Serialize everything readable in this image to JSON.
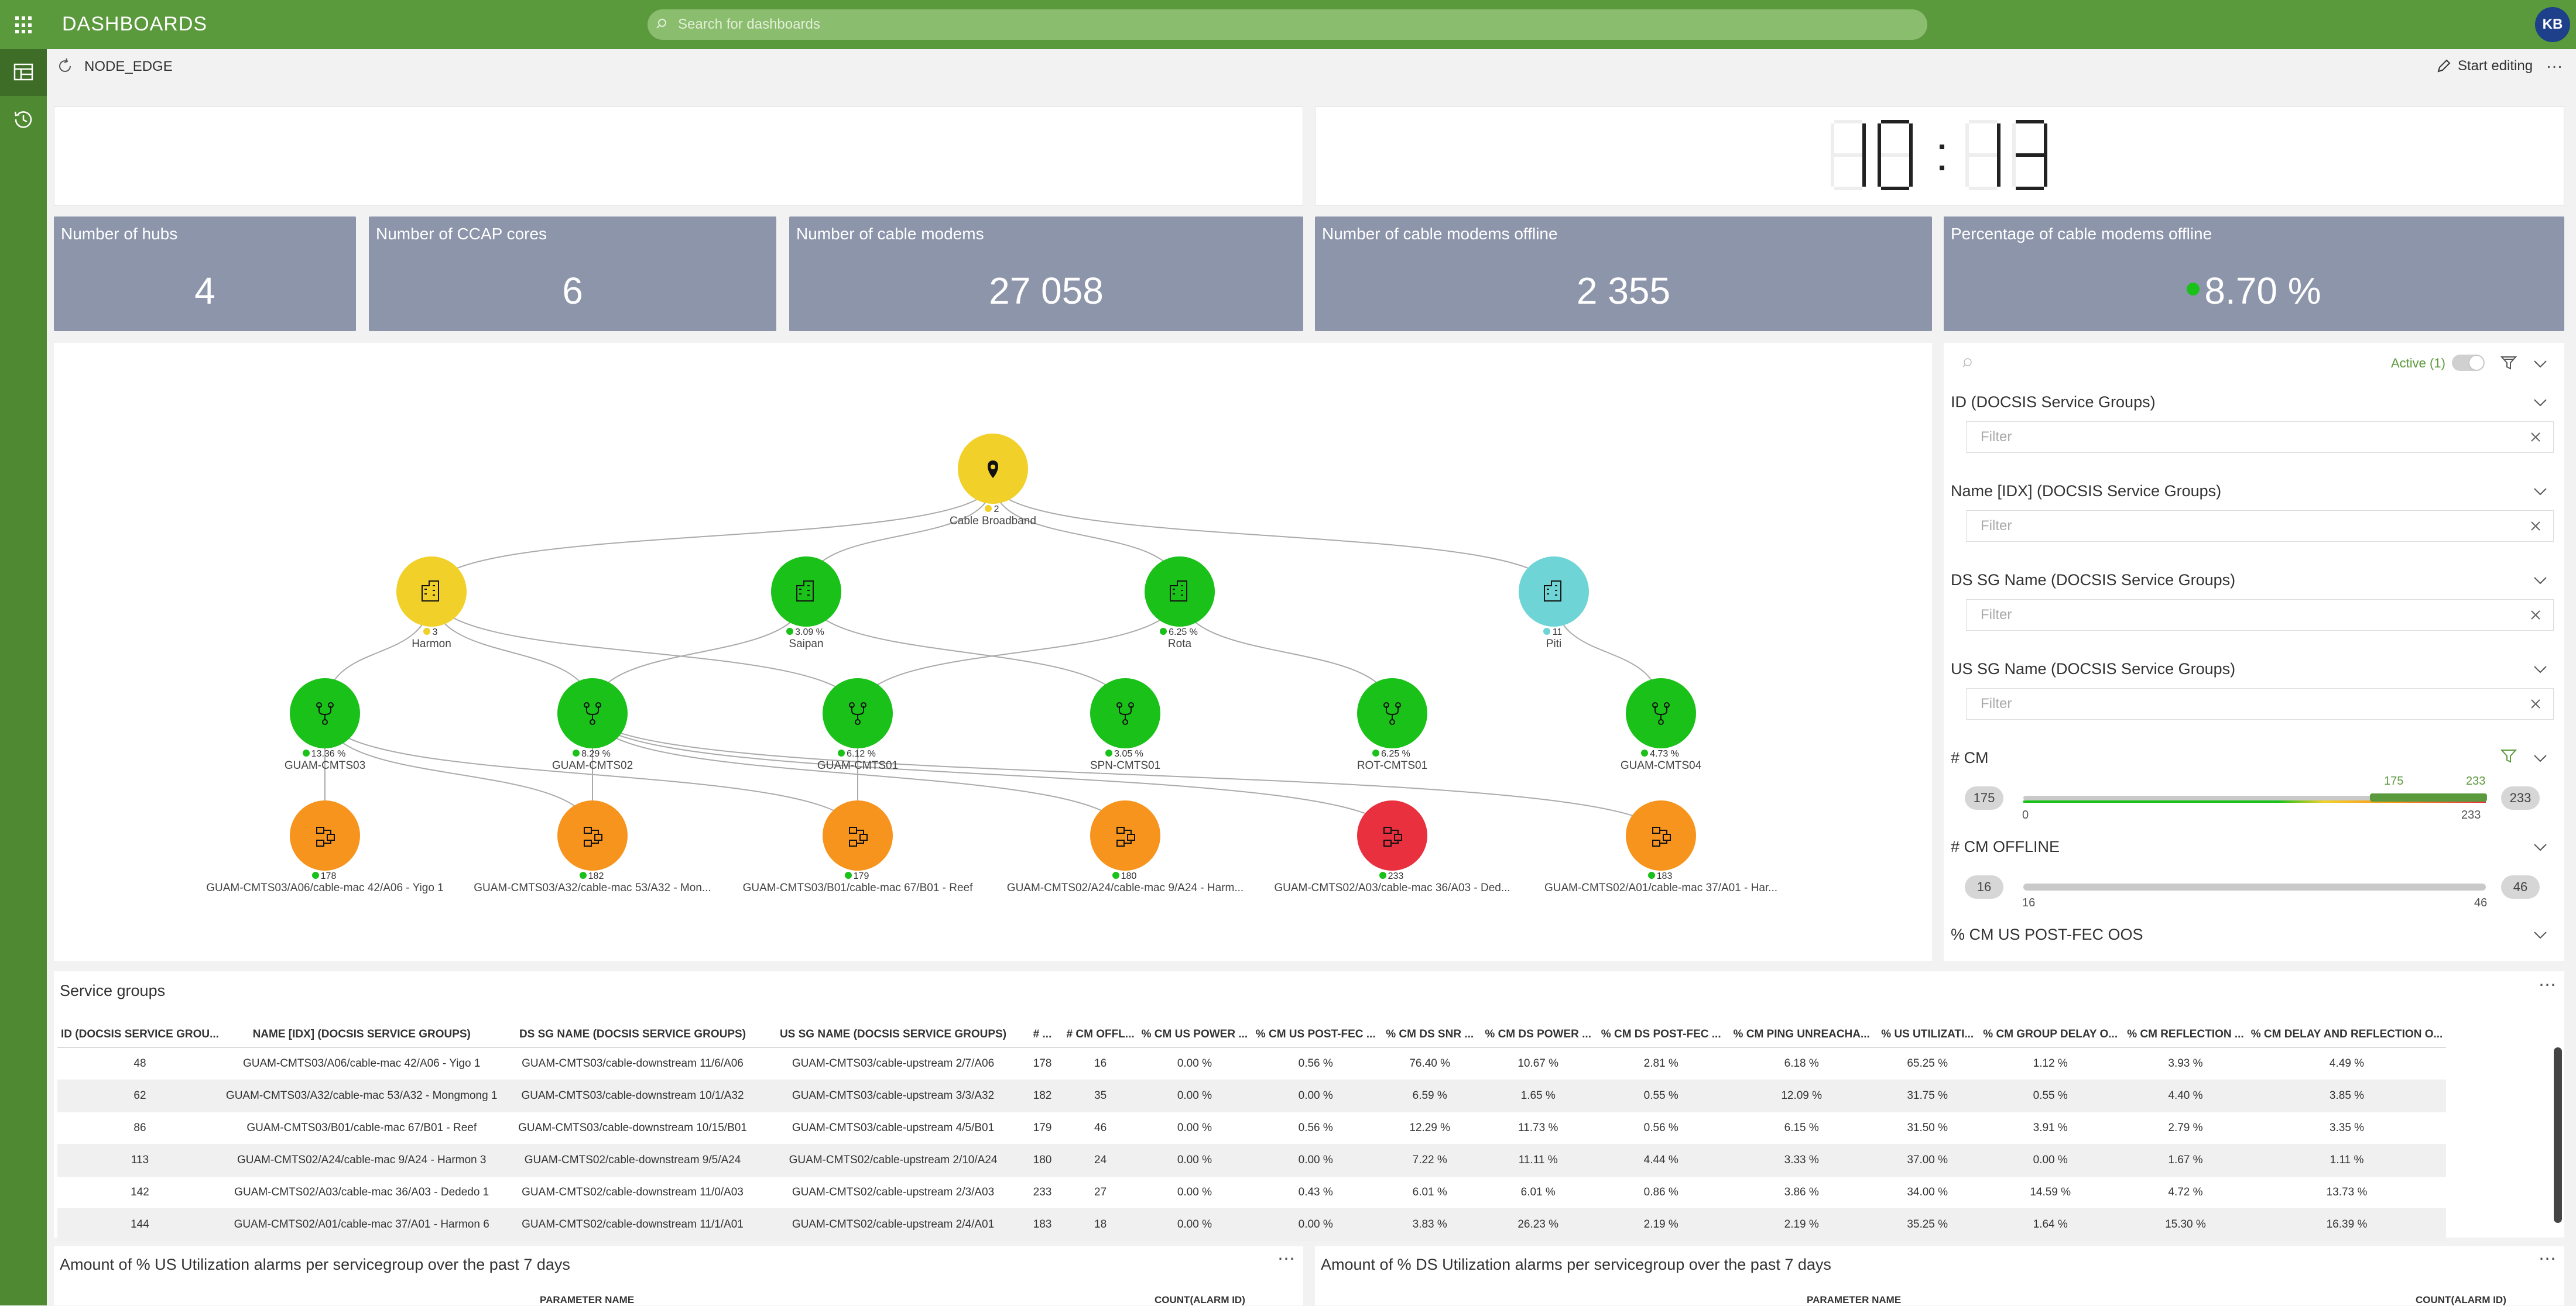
{
  "app": {
    "title": "DASHBOARDS",
    "search_placeholder": "Search for dashboards",
    "user_initials": "KB"
  },
  "breadcrumb": {
    "name": "NODE_EDGE",
    "start_editing": "Start editing",
    "more": "…"
  },
  "clock": {
    "hours": "10",
    "minutes": "13"
  },
  "kpis": [
    {
      "title": "Number of hubs",
      "value": "4"
    },
    {
      "title": "Number of CCAP cores",
      "value": "6"
    },
    {
      "title": "Number of cable modems",
      "value": "27 058"
    },
    {
      "title": "Number of cable modems offline",
      "value": "2 355"
    },
    {
      "title": "Percentage of cable modems offline",
      "value": "8.70 %"
    }
  ],
  "graph": {
    "root": {
      "label": "Cable Broadband",
      "value": "2",
      "color": "#f2d02a"
    },
    "hubs": [
      {
        "label": "Harmon",
        "value": "3",
        "color": "#f2d02a",
        "dot": "#f2d02a"
      },
      {
        "label": "Saipan",
        "value": "3.09 %",
        "color": "#19c119",
        "dot": "#19c119"
      },
      {
        "label": "Rota",
        "value": "6.25 %",
        "color": "#19c119",
        "dot": "#19c119"
      },
      {
        "label": "Piti",
        "value": "11",
        "color": "#6fd4d6",
        "dot": "#6fd4d6"
      }
    ],
    "cores": [
      {
        "label": "GUAM-CMTS03",
        "value": "13.36 %"
      },
      {
        "label": "GUAM-CMTS02",
        "value": "8.29 %"
      },
      {
        "label": "GUAM-CMTS01",
        "value": "6.12 %"
      },
      {
        "label": "SPN-CMTS01",
        "value": "3.05 %"
      },
      {
        "label": "ROT-CMTS01",
        "value": "6.25 %"
      },
      {
        "label": "GUAM-CMTS04",
        "value": "4.73 %"
      }
    ],
    "groups": [
      {
        "label": "GUAM-CMTS03/A06/cable-mac 42/A06 - Yigo 1",
        "value": "178",
        "color": "#f7941d"
      },
      {
        "label": "GUAM-CMTS03/A32/cable-mac 53/A32 - Mon...",
        "value": "182",
        "color": "#f7941d"
      },
      {
        "label": "GUAM-CMTS03/B01/cable-mac 67/B01 - Reef",
        "value": "179",
        "color": "#f7941d"
      },
      {
        "label": "GUAM-CMTS02/A24/cable-mac 9/A24 - Harm...",
        "value": "180",
        "color": "#f7941d"
      },
      {
        "label": "GUAM-CMTS02/A03/cable-mac 36/A03 - Ded...",
        "value": "233",
        "color": "#e8303e"
      },
      {
        "label": "GUAM-CMTS02/A01/cable-mac 37/A01 - Har...",
        "value": "183",
        "color": "#f7941d"
      }
    ]
  },
  "filters": {
    "active_label": "Active (1)",
    "filter_placeholder": "Filter",
    "sections": [
      {
        "title": "ID (DOCSIS Service Groups)"
      },
      {
        "title": "Name [IDX] (DOCSIS Service Groups)"
      },
      {
        "title": "DS SG Name (DOCSIS Service Groups)"
      },
      {
        "title": "US SG Name (DOCSIS Service Groups)"
      }
    ],
    "cm": {
      "title": "# CM",
      "min": "175",
      "max": "233",
      "sel_low": "175",
      "sel_high": "233",
      "axis_low": "0",
      "axis_high": "233"
    },
    "cm_offline": {
      "title": "# CM OFFLINE",
      "min": "16",
      "max": "46",
      "axis_low": "16",
      "axis_high": "46"
    },
    "postfec": {
      "title": "% CM US POST-FEC OOS"
    }
  },
  "service_groups": {
    "title": "Service groups",
    "columns": [
      "ID (DOCSIS SERVICE GROU...",
      "NAME [IDX] (DOCSIS SERVICE GROUPS)",
      "DS SG NAME (DOCSIS SERVICE GROUPS)",
      "US SG NAME (DOCSIS SERVICE GROUPS)",
      "# ...",
      "# CM OFFL...",
      "% CM US POWER ...",
      "% CM US POST-FEC ...",
      "% CM DS SNR ...",
      "% CM DS POWER ...",
      "% CM DS POST-FEC ...",
      "% CM PING UNREACHA...",
      "% US UTILIZATI...",
      "% CM GROUP DELAY O...",
      "% CM REFLECTION ...",
      "% CM DELAY AND REFLECTION O..."
    ],
    "rows": [
      [
        "48",
        "GUAM-CMTS03/A06/cable-mac 42/A06 - Yigo 1",
        "GUAM-CMTS03/cable-downstream 11/6/A06",
        "GUAM-CMTS03/cable-upstream 2/7/A06",
        "178",
        "16",
        "0.00 %",
        "0.56 %",
        "76.40 %",
        "10.67 %",
        "2.81 %",
        "6.18 %",
        "65.25 %",
        "1.12 %",
        "3.93 %",
        "4.49 %"
      ],
      [
        "62",
        "GUAM-CMTS03/A32/cable-mac 53/A32 - Mongmong 1",
        "GUAM-CMTS03/cable-downstream 10/1/A32",
        "GUAM-CMTS03/cable-upstream 3/3/A32",
        "182",
        "35",
        "0.00 %",
        "0.00 %",
        "6.59 %",
        "1.65 %",
        "0.55 %",
        "12.09 %",
        "31.75 %",
        "0.55 %",
        "4.40 %",
        "3.85 %"
      ],
      [
        "86",
        "GUAM-CMTS03/B01/cable-mac 67/B01 - Reef",
        "GUAM-CMTS03/cable-downstream 10/15/B01",
        "GUAM-CMTS03/cable-upstream 4/5/B01",
        "179",
        "46",
        "0.00 %",
        "0.56 %",
        "12.29 %",
        "11.73 %",
        "0.56 %",
        "6.15 %",
        "31.50 %",
        "3.91 %",
        "2.79 %",
        "3.35 %"
      ],
      [
        "113",
        "GUAM-CMTS02/A24/cable-mac 9/A24 - Harmon 3",
        "GUAM-CMTS02/cable-downstream 9/5/A24",
        "GUAM-CMTS02/cable-upstream 2/10/A24",
        "180",
        "24",
        "0.00 %",
        "0.00 %",
        "7.22 %",
        "11.11 %",
        "4.44 %",
        "3.33 %",
        "37.00 %",
        "0.00 %",
        "1.67 %",
        "1.11 %"
      ],
      [
        "142",
        "GUAM-CMTS02/A03/cable-mac 36/A03 - Dededo 1",
        "GUAM-CMTS02/cable-downstream 11/0/A03",
        "GUAM-CMTS02/cable-upstream 2/3/A03",
        "233",
        "27",
        "0.00 %",
        "0.43 %",
        "6.01 %",
        "6.01 %",
        "0.86 %",
        "3.86 %",
        "34.00 %",
        "14.59 %",
        "4.72 %",
        "13.73 %"
      ],
      [
        "144",
        "GUAM-CMTS02/A01/cable-mac 37/A01 - Harmon 6",
        "GUAM-CMTS02/cable-downstream 11/1/A01",
        "GUAM-CMTS02/cable-upstream 2/4/A01",
        "183",
        "18",
        "0.00 %",
        "0.00 %",
        "3.83 %",
        "26.23 %",
        "2.19 %",
        "2.19 %",
        "35.25 %",
        "1.64 %",
        "15.30 %",
        "16.39 %"
      ]
    ]
  },
  "bottom_panels": [
    {
      "title": "Amount of % US Utilization alarms per servicegroup over the past 7 days",
      "col1": "PARAMETER NAME",
      "col2": "COUNT(ALARM ID)"
    },
    {
      "title": "Amount of % DS Utilization alarms per servicegroup over the past 7 days",
      "col1": "PARAMETER NAME",
      "col2": "COUNT(ALARM ID)"
    }
  ],
  "colors": {
    "topbar": "#5b9a3c",
    "kpi_bg": "#8d95ab",
    "green": "#19c119",
    "orange": "#f7941d",
    "red": "#e8303e",
    "yellow": "#f2d02a",
    "cyan": "#6fd4d6"
  }
}
